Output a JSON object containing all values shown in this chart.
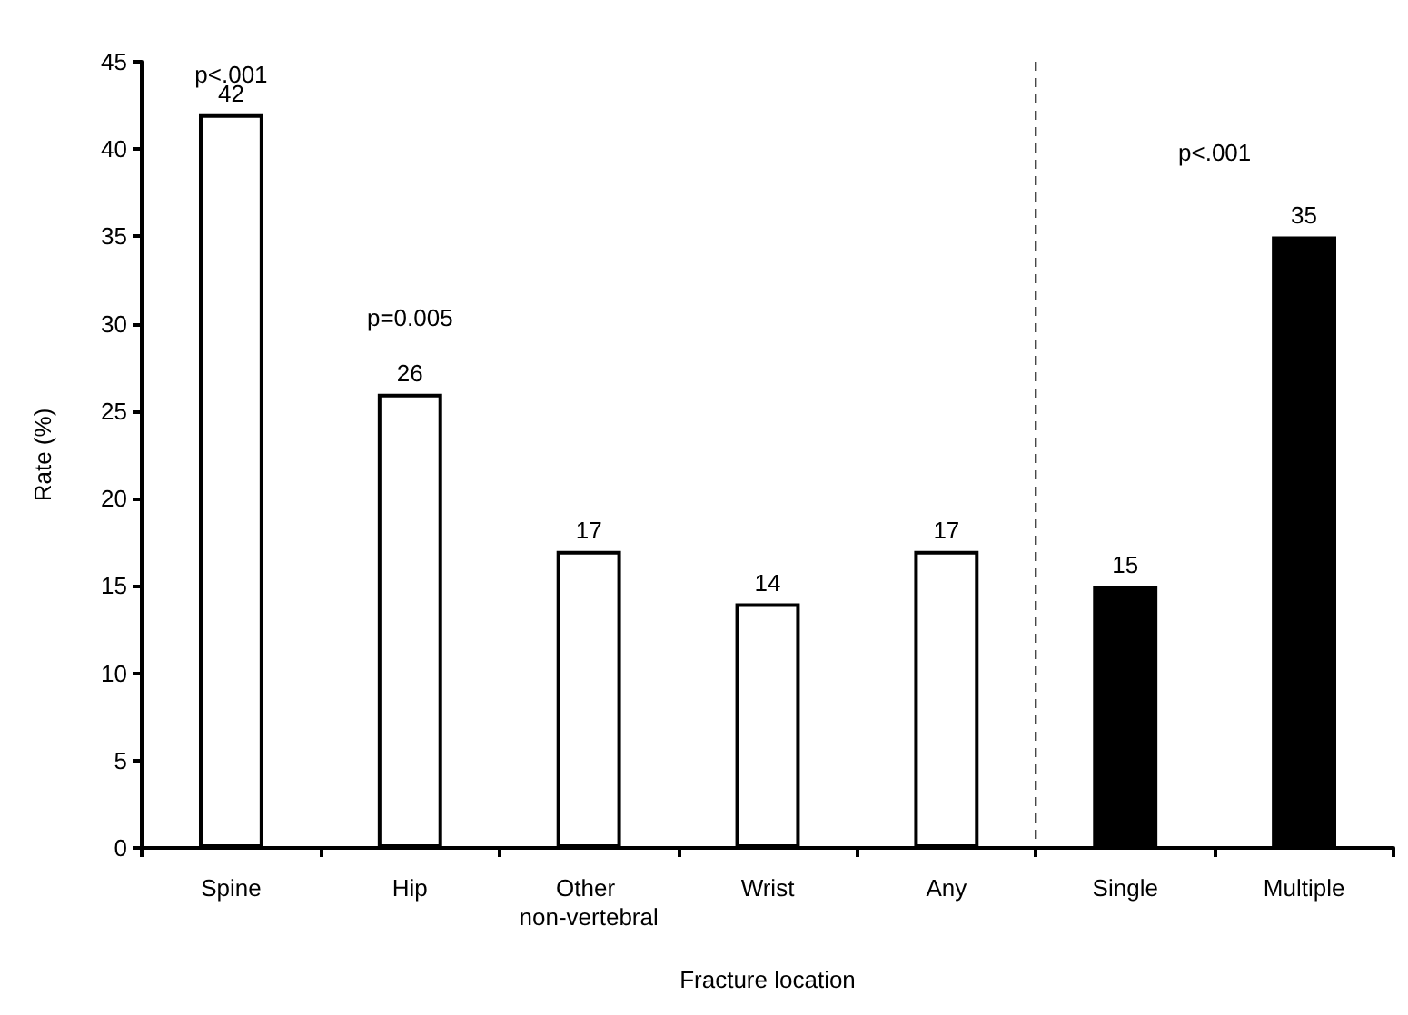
{
  "chart_data": {
    "type": "bar",
    "categories": [
      "Spine",
      "Hip",
      "Other non-vertebral",
      "Wrist",
      "Any",
      "Single",
      "Multiple"
    ],
    "values": [
      42,
      26,
      17,
      14,
      17,
      15,
      35
    ],
    "colors": [
      "#ffffff",
      "#ffffff",
      "#ffffff",
      "#ffffff",
      "#ffffff",
      "#000000",
      "#000000"
    ],
    "xlabel": "Fracture location",
    "ylabel": "Rate (%)",
    "ylim": [
      0,
      45
    ],
    "yticks": [
      0,
      5,
      10,
      15,
      20,
      25,
      30,
      35,
      40,
      45
    ],
    "data_labels": true,
    "grid": false,
    "annotations": [
      "p<.001",
      "p=0.005",
      "p<.001"
    ]
  }
}
